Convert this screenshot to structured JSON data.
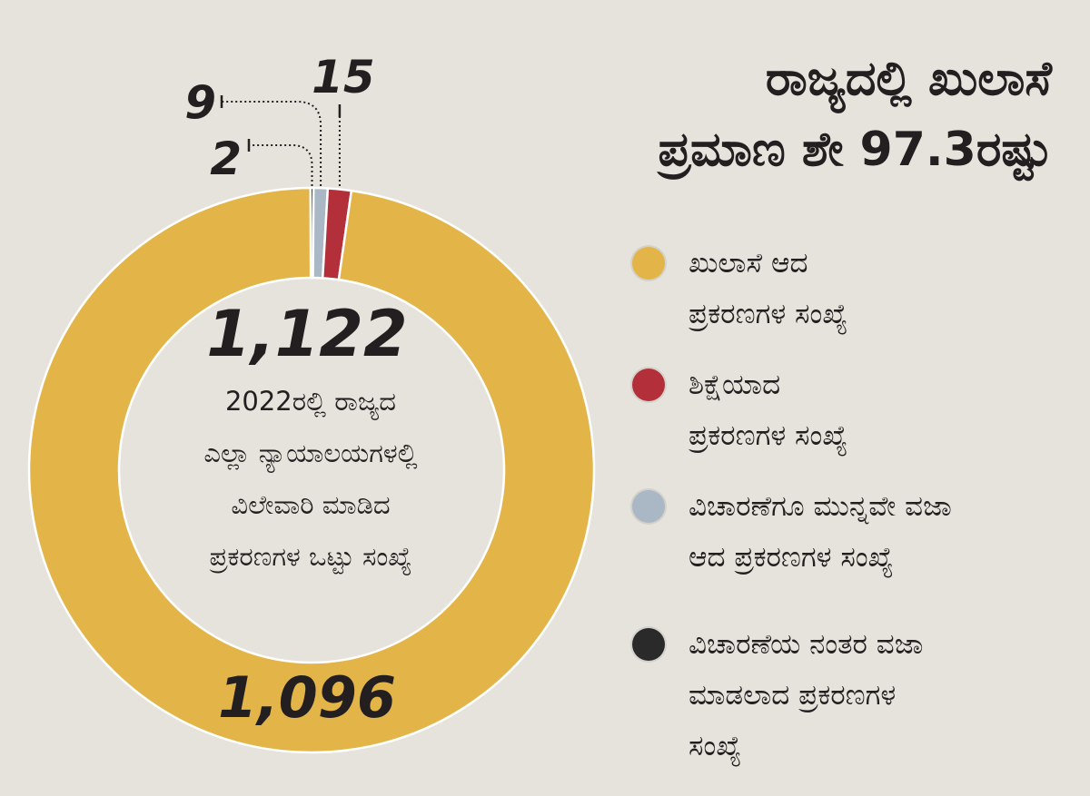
{
  "chart_data": {
    "type": "pie",
    "title": "ರಾಜ್ಯದಲ್ಲಿ ಖುಲಾಸೆ\nಪ್ರಮಾಣ ಶೇ 97.3ರಷ್ಟು",
    "total": {
      "value": "1,122",
      "caption": "2022ರಲ್ಲಿ ರಾಜ್ಯದ\nಎಲ್ಲಾ ನ್ಯಾಯಾಲಯಗಳಲ್ಲಿ\nವಿಲೇವಾರಿ ಮಾಡಿದ\nಪ್ರಕರಣಗಳ ಒಟ್ಟು ಸಂಖ್ಯೆ"
    },
    "slices": [
      {
        "label": "ಖುಲಾಸೆ ಆದ\nಪ್ರಕರಣಗಳ ಸಂಖ್ಯೆ",
        "value": 1096,
        "display": "1,096",
        "color": "#e3b548"
      },
      {
        "label": "ಶಿಕ್ಷೆಯಾದ\nಪ್ರಕರಣಗಳ ಸಂಖ್ಯೆ",
        "value": 15,
        "display": "15",
        "color": "#b3303a"
      },
      {
        "label": "ವಿಚಾರಣೆಗೂ ಮುನ್ನವೇ ವಜಾ\nಆದ ಪ್ರಕರಣಗಳ ಸಂಖ್ಯೆ",
        "value": 9,
        "display": "9",
        "color": "#aab7c4"
      },
      {
        "label": "ವಿಚಾರಣೆಯ ನಂತರ ವಜಾ\nಮಾಡಲಾದ ಪ್ರಕರಣಗಳ\nಸಂಖ್ಯೆ",
        "value": 2,
        "display": "2",
        "color": "#2a2a2a"
      }
    ],
    "legend_position": "right"
  }
}
